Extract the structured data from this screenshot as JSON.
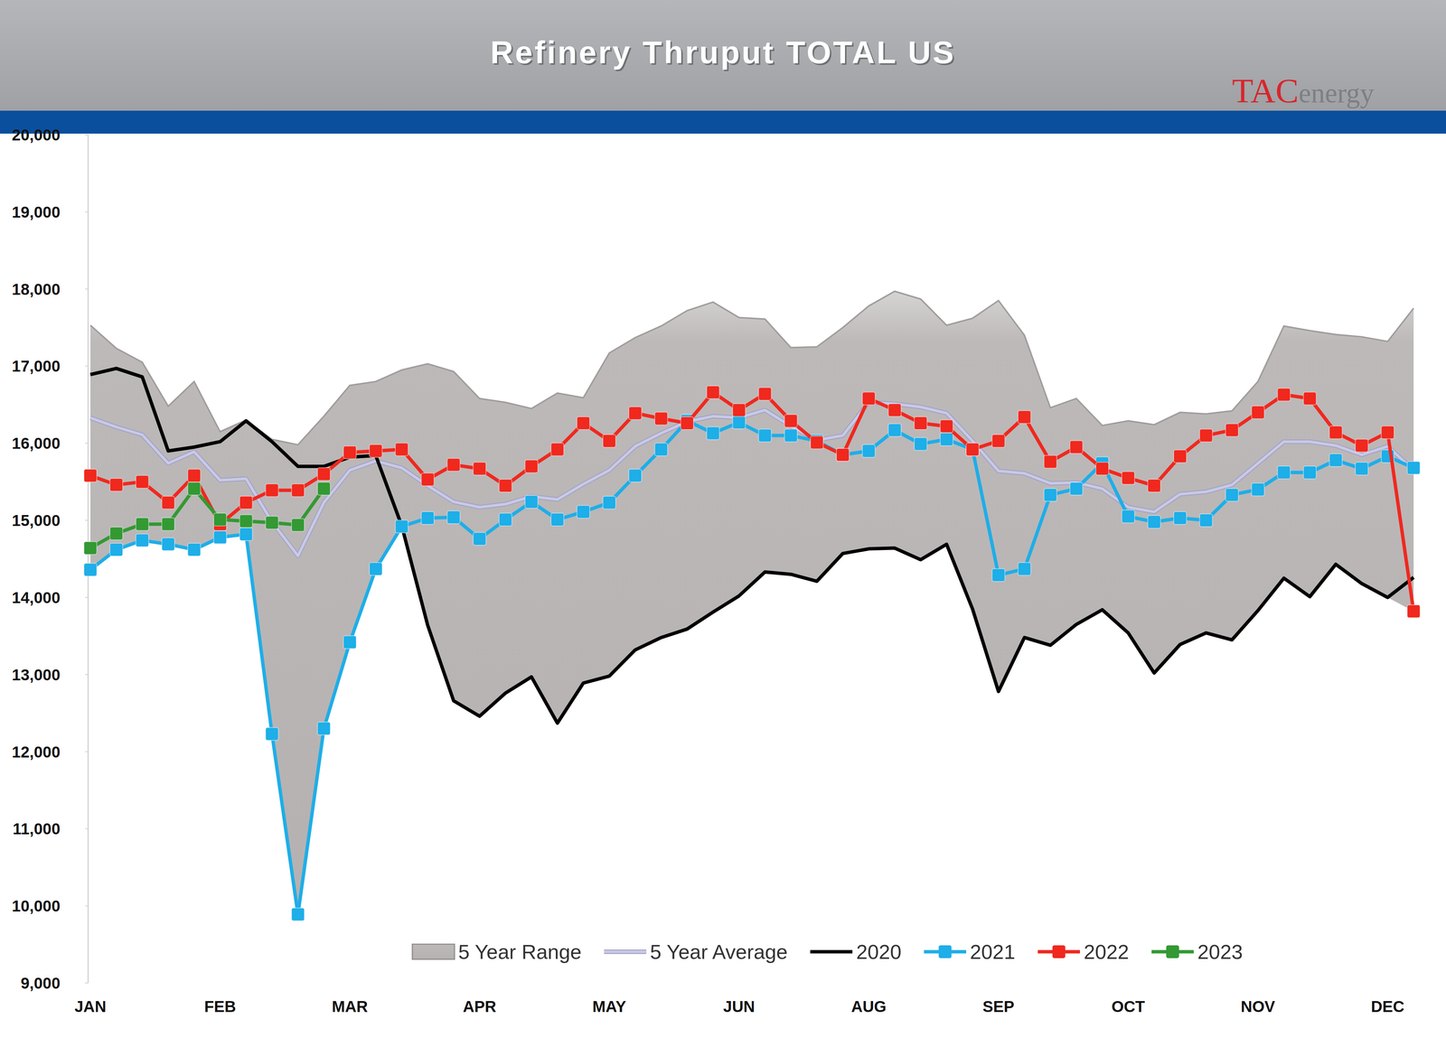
{
  "chart_data": {
    "type": "line",
    "title": "Refinery Thruput TOTAL US",
    "logo": {
      "prefix": "TAC",
      "suffix": "energy"
    },
    "categories": [
      "JAN",
      null,
      null,
      null,
      null,
      "FEB",
      null,
      null,
      null,
      null,
      "MAR",
      null,
      null,
      null,
      null,
      "APR",
      null,
      null,
      null,
      null,
      "MAY",
      null,
      null,
      null,
      null,
      "JUN",
      null,
      null,
      null,
      null,
      "AUG",
      null,
      null,
      null,
      null,
      "SEP",
      null,
      null,
      null,
      null,
      "OCT",
      null,
      null,
      null,
      null,
      "NOV",
      null,
      null,
      null,
      null,
      "DEC",
      null
    ],
    "ylim": [
      9000,
      20000
    ],
    "yticks": [
      {
        "value": 9000,
        "label": "9,000"
      },
      {
        "value": 10000,
        "label": "10,000"
      },
      {
        "value": 11000,
        "label": "11,000"
      },
      {
        "value": 12000,
        "label": "12,000"
      },
      {
        "value": 13000,
        "label": "13,000"
      },
      {
        "value": 14000,
        "label": "14,000"
      },
      {
        "value": 15000,
        "label": "15,000"
      },
      {
        "value": 16000,
        "label": "16,000"
      },
      {
        "value": 17000,
        "label": "17,000"
      },
      {
        "value": 18000,
        "label": "18,000"
      },
      {
        "value": 19000,
        "label": "19,000"
      },
      {
        "value": 20000,
        "label": "20,000"
      }
    ],
    "grid": false,
    "legend": "bottom",
    "series": [
      {
        "name": "5 Year Range",
        "type": "area",
        "color": "#bcb8b8",
        "low": [
          14360,
          14620,
          14740,
          14690,
          14620,
          14780,
          14820,
          12230,
          9890,
          12300,
          13420,
          14370,
          14920,
          13640,
          12660,
          12460,
          12760,
          12970,
          12370,
          12890,
          12980,
          13320,
          13480,
          13590,
          13810,
          14020,
          14330,
          14300,
          14210,
          14570,
          14630,
          14640,
          14490,
          14690,
          13850,
          12780,
          13480,
          13380,
          13650,
          13840,
          13540,
          13020,
          13390,
          13540,
          13450,
          13830,
          14250,
          14010,
          14430,
          14180,
          14000,
          13820
        ],
        "high": [
          17530,
          17230,
          17050,
          16480,
          16800,
          16150,
          16300,
          16050,
          15980,
          16350,
          16750,
          16800,
          16950,
          17030,
          16930,
          16580,
          16530,
          16450,
          16650,
          16590,
          17170,
          17370,
          17520,
          17720,
          17830,
          17630,
          17610,
          17240,
          17250,
          17500,
          17780,
          17970,
          17870,
          17530,
          17620,
          17850,
          17400,
          16460,
          16580,
          16230,
          16290,
          16240,
          16400,
          16380,
          16420,
          16800,
          17520,
          17460,
          17410,
          17380,
          17320,
          17750
        ]
      },
      {
        "name": "5 Year Average",
        "type": "line",
        "color": "#c9c9e6",
        "marker": "none",
        "values": [
          16330,
          16210,
          16110,
          15740,
          15890,
          15520,
          15540,
          14980,
          14540,
          15230,
          15650,
          15770,
          15680,
          15450,
          15240,
          15170,
          15210,
          15310,
          15270,
          15470,
          15650,
          15960,
          16130,
          16280,
          16350,
          16330,
          16430,
          16220,
          16040,
          16100,
          16530,
          16510,
          16470,
          16390,
          16030,
          15640,
          15610,
          15480,
          15490,
          15410,
          15170,
          15110,
          15340,
          15370,
          15460,
          15740,
          16020,
          16020,
          15970,
          15850,
          15960,
          15650
        ]
      },
      {
        "name": "2020",
        "type": "line",
        "color": "#000000",
        "marker": "none",
        "values": [
          16890,
          16970,
          16860,
          15900,
          15950,
          16020,
          16290,
          16020,
          15700,
          15700,
          15820,
          15840,
          14930,
          13640,
          12660,
          12460,
          12760,
          12970,
          12370,
          12890,
          12980,
          13320,
          13480,
          13590,
          13810,
          14020,
          14330,
          14300,
          14210,
          14570,
          14630,
          14640,
          14490,
          14690,
          13850,
          12780,
          13480,
          13380,
          13650,
          13840,
          13540,
          13020,
          13390,
          13540,
          13450,
          13830,
          14250,
          14010,
          14430,
          14180,
          14000,
          14260
        ]
      },
      {
        "name": "2021",
        "type": "line",
        "color": "#1eaee8",
        "marker": "square",
        "values": [
          14360,
          14620,
          14740,
          14690,
          14620,
          14780,
          14820,
          12230,
          9890,
          12300,
          13420,
          14370,
          14920,
          15030,
          15040,
          14760,
          15010,
          15240,
          15010,
          15110,
          15230,
          15580,
          15920,
          16290,
          16130,
          16270,
          16100,
          16100,
          16030,
          15850,
          15900,
          16170,
          15990,
          16050,
          15920,
          14290,
          14370,
          15330,
          15410,
          15740,
          15050,
          14980,
          15030,
          15000,
          15330,
          15400,
          15620,
          15620,
          15780,
          15670,
          15830,
          15680
        ]
      },
      {
        "name": "2022",
        "type": "line",
        "color": "#f0281e",
        "marker": "square",
        "values": [
          15580,
          15460,
          15500,
          15230,
          15580,
          14950,
          15230,
          15390,
          15390,
          15600,
          15880,
          15900,
          15920,
          15530,
          15720,
          15670,
          15450,
          15700,
          15920,
          16260,
          16030,
          16390,
          16320,
          16260,
          16660,
          16430,
          16640,
          16290,
          16010,
          15850,
          16580,
          16430,
          16260,
          16220,
          15920,
          16030,
          16340,
          15760,
          15950,
          15670,
          15550,
          15450,
          15830,
          16100,
          16170,
          16400,
          16630,
          16580,
          16140,
          15970,
          16140,
          13820
        ]
      },
      {
        "name": "2023",
        "type": "line",
        "color": "#339933",
        "marker": "square",
        "values": [
          14640,
          14830,
          14950,
          14950,
          15410,
          15010,
          14990,
          14970,
          14940,
          15410,
          null,
          null,
          null,
          null,
          null,
          null,
          null,
          null,
          null,
          null,
          null,
          null,
          null,
          null,
          null,
          null,
          null,
          null,
          null,
          null,
          null,
          null,
          null,
          null,
          null,
          null,
          null,
          null,
          null,
          null,
          null,
          null,
          null,
          null,
          null,
          null,
          null,
          null,
          null,
          null,
          null,
          null
        ]
      }
    ]
  }
}
